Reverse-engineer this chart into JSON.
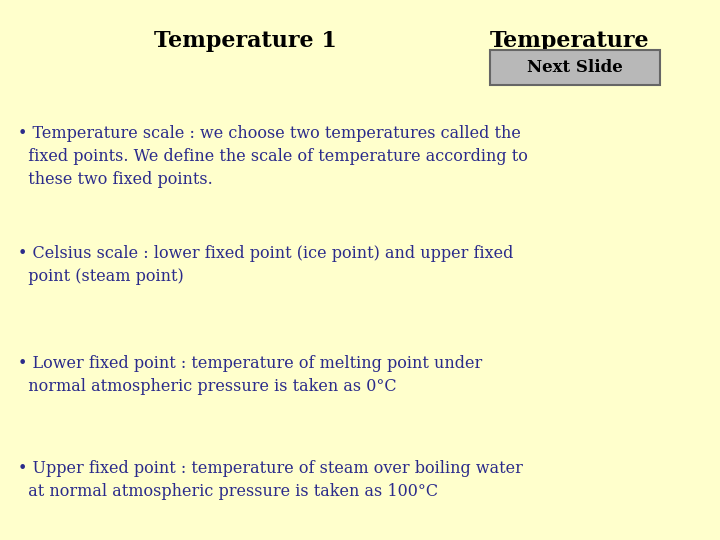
{
  "background_color": "#FFFFCC",
  "title_left": "Temperature 1",
  "title_right": "Temperature",
  "title_color": "#000000",
  "title_fontsize": 16,
  "title_fontweight": "bold",
  "next_slide_label": "Next Slide",
  "next_slide_box_facecolor": "#B8B8B8",
  "next_slide_box_edgecolor": "#666666",
  "next_slide_text_color": "#000000",
  "next_slide_fontsize": 12,
  "bullet_color": "#2B2B8B",
  "bullet_fontsize": 11.5,
  "bullet_linespacing": 1.45,
  "bullets": [
    "• Temperature scale : we choose two temperatures called the\n  fixed points. We define the scale of temperature according to\n  these two fixed points.",
    "• Celsius scale : lower fixed point (ice point) and upper fixed\n  point (steam point)",
    "• Lower fixed point : temperature of melting point under\n  normal atmospheric pressure is taken as 0°C",
    "• Upper fixed point : temperature of steam over boiling water\n  at normal atmospheric pressure is taken as 100°C"
  ],
  "fig_width": 7.2,
  "fig_height": 5.4,
  "dpi": 100
}
